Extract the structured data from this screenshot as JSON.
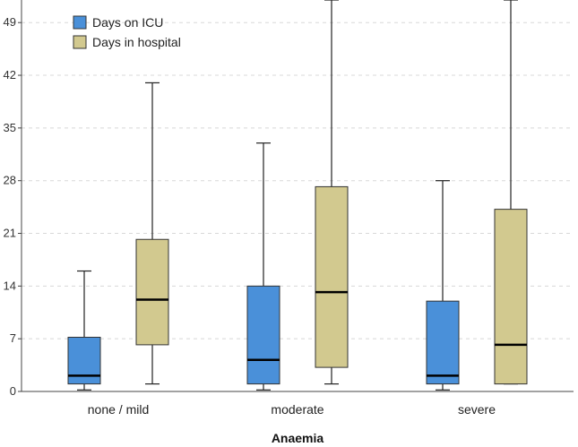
{
  "chart_data": {
    "type": "boxplot",
    "title": "",
    "xlabel": "Anaemia",
    "ylabel": "",
    "ylim": [
      0,
      52
    ],
    "yticks": [
      0,
      7,
      14,
      21,
      28,
      35,
      42,
      49
    ],
    "grid": "horizontal dashed",
    "legend_position": "top-left",
    "categories": [
      "none / mild",
      "moderate",
      "severe"
    ],
    "series": [
      {
        "name": "Days on ICU",
        "color": "#4a90d9",
        "boxes": [
          {
            "whisker_low": 0.2,
            "q1": 1,
            "median": 2.1,
            "q3": 7.2,
            "whisker_high": 16
          },
          {
            "whisker_low": 0.2,
            "q1": 1,
            "median": 4.2,
            "q3": 14,
            "whisker_high": 33
          },
          {
            "whisker_low": 0.2,
            "q1": 1,
            "median": 2.1,
            "q3": 12,
            "whisker_high": 28
          }
        ]
      },
      {
        "name": "Days in hospital",
        "color": "#d2c98f",
        "boxes": [
          {
            "whisker_low": 1,
            "q1": 6.2,
            "median": 12.2,
            "q3": 20.2,
            "whisker_high": 41
          },
          {
            "whisker_low": 1,
            "q1": 3.2,
            "median": 13.2,
            "q3": 27.2,
            "whisker_high": 52
          },
          {
            "whisker_low": 1,
            "q1": 1,
            "median": 6.2,
            "q3": 24.2,
            "whisker_high": 52
          }
        ]
      }
    ]
  }
}
